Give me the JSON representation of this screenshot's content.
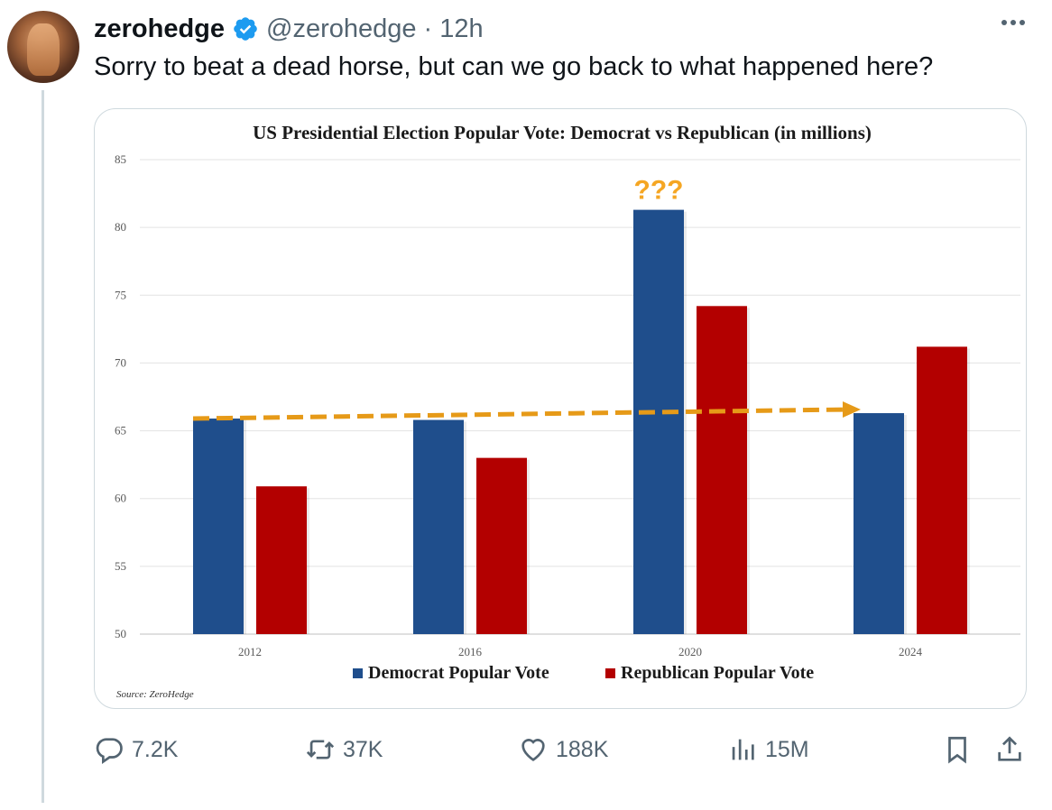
{
  "tweet": {
    "display_name": "zerohedge",
    "handle": "@zerohedge",
    "separator": "·",
    "time": "12h",
    "text": "Sorry to beat a dead horse, but can we go back to what happened here?",
    "icons": {
      "verified": "verified-badge-icon",
      "more": "more-options-icon"
    },
    "accent_color": "#1d9bf0"
  },
  "chart_data": {
    "type": "bar",
    "title": "US Presidential Election Popular Vote: Democrat vs  Republican (in millions)",
    "categories": [
      "2012",
      "2016",
      "2020",
      "2024"
    ],
    "series": [
      {
        "name": "Democrat Popular Vote",
        "color": "#1f4e8c",
        "values": [
          65.9,
          65.8,
          81.3,
          66.3
        ]
      },
      {
        "name": "Republican Popular Vote",
        "color": "#b30000",
        "values": [
          60.9,
          63.0,
          74.2,
          71.2
        ]
      }
    ],
    "ylim": [
      50,
      85
    ],
    "yticks": [
      "85",
      "80",
      "75",
      "70",
      "65",
      "60",
      "55",
      "50"
    ],
    "grid": true,
    "legend_position": "bottom",
    "annotation": {
      "text": "???",
      "category": "2020",
      "color": "#f5a623"
    },
    "trend_arrow": {
      "from_category": "2012",
      "to_category": "2024",
      "y_from": 65.9,
      "y_to": 66.3,
      "color": "#e69a18"
    },
    "source": "Source: ZeroHedge"
  },
  "actions": {
    "reply": {
      "count": "7.2K",
      "icon": "reply-icon"
    },
    "retweet": {
      "count": "37K",
      "icon": "retweet-icon"
    },
    "like": {
      "count": "188K",
      "icon": "heart-icon"
    },
    "views": {
      "count": "15M",
      "icon": "views-icon"
    },
    "bookmark": {
      "icon": "bookmark-icon"
    },
    "share": {
      "icon": "share-icon"
    }
  }
}
